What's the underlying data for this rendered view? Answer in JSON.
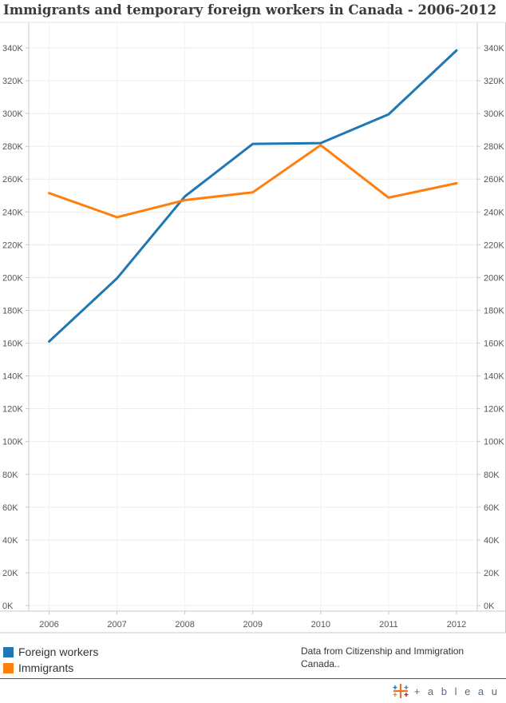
{
  "title": "Immigrants and temporary foreign workers in Canada - 2006-2012",
  "chart_data": {
    "type": "line",
    "title": "Immigrants and temporary foreign workers in Canada - 2006-2012",
    "x": [
      "2006",
      "2007",
      "2008",
      "2009",
      "2010",
      "2011",
      "2012"
    ],
    "series": [
      {
        "name": "Foreign workers",
        "color": "#1f77b4",
        "values": [
          161000,
          199500,
          249500,
          281500,
          282000,
          299500,
          338500
        ]
      },
      {
        "name": "Immigrants",
        "color": "#ff7f0e",
        "values": [
          251500,
          236800,
          247200,
          252000,
          280700,
          248700,
          257500
        ]
      }
    ],
    "ylim": [
      0,
      350000
    ],
    "y_ticks": [
      0,
      20000,
      40000,
      60000,
      80000,
      100000,
      120000,
      140000,
      160000,
      180000,
      200000,
      220000,
      240000,
      260000,
      280000,
      300000,
      320000,
      340000
    ],
    "y_tick_labels": [
      "0K",
      "20K",
      "40K",
      "60K",
      "80K",
      "100K",
      "120K",
      "140K",
      "160K",
      "180K",
      "200K",
      "220K",
      "240K",
      "260K",
      "280K",
      "300K",
      "320K",
      "340K"
    ],
    "dual_axis": true,
    "grid": true,
    "legend_position": "bottom-left"
  },
  "legend": [
    {
      "label": "Foreign workers",
      "color": "#1f77b4"
    },
    {
      "label": "Immigrants",
      "color": "#ff7f0e"
    }
  ],
  "source_note": "Data from Citizenship and Immigration Canada..",
  "footer": {
    "logo_text": "+ a b l e a u",
    "logo_icon": "tableau-cross-icon",
    "logo_color": "#5a6b7d"
  }
}
